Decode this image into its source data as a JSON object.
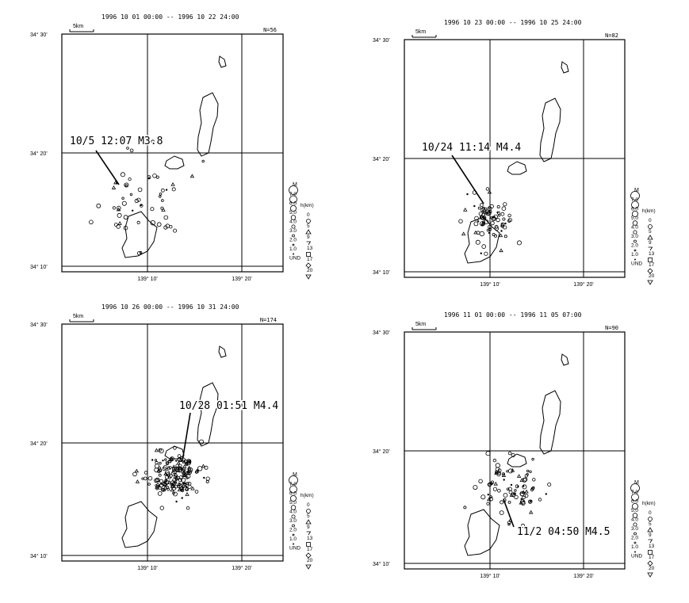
{
  "panels": [
    {
      "period": "1996 10 01 00:00 -- 1996 10 22 24:00",
      "count": "N=56",
      "event": "10/5 12:07 M3.8",
      "scale": "5km",
      "lat_top": "34° 30'",
      "lat_mid": "34° 20'",
      "lat_bot": "34° 10'",
      "lon_left": "139° 10'",
      "lon_right": "139° 20'"
    },
    {
      "period": "1996 10 23 00:00 -- 1996 10 25 24:00",
      "count": "N=82",
      "event": "10/24 11:14 M4.4",
      "scale": "5km",
      "lat_top": "34° 30'",
      "lat_mid": "34° 20'",
      "lat_bot": "34° 10'",
      "lon_left": "139° 10'",
      "lon_right": "139° 20'"
    },
    {
      "period": "1996 10 26 00:00 -- 1996 10 31 24:00",
      "count": "N=174",
      "event": "10/28 01:51 M4.4",
      "scale": "5km",
      "lat_top": "34° 30'",
      "lat_mid": "34° 20'",
      "lat_bot": "34° 10'",
      "lon_left": "139° 10'",
      "lon_right": "139° 20'"
    },
    {
      "period": "1996 11 01 00:00 -- 1996 11 05 07:00",
      "count": "N=90",
      "event": "11/2 04:50 M4.5",
      "scale": "5km",
      "lat_top": "34° 30'",
      "lat_mid": "34° 20'",
      "lat_bot": "34° 10'",
      "lon_left": "139° 10'",
      "lon_right": "139° 20'"
    }
  ],
  "legend": {
    "magnitude_title": "M",
    "magnitudes": [
      "7.0",
      "6.0",
      "5.0",
      "4.0",
      "3.0",
      "2.0",
      "1.0",
      "UND"
    ],
    "depth_title": "h(km)",
    "depths": [
      "0",
      "5",
      "9",
      "13",
      "17",
      "20"
    ]
  }
}
